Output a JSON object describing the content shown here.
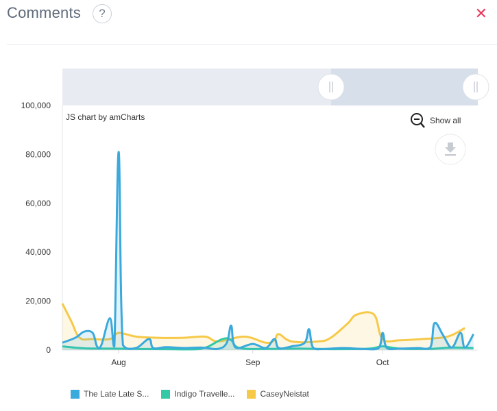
{
  "header": {
    "title": "Comments",
    "help_icon": "question-mark-icon",
    "close_icon": "close-icon"
  },
  "chart_toolbar": {
    "credit": "JS chart by amCharts",
    "show_all_label": "Show all",
    "zoom_out_icon": "zoom-out-icon",
    "export_icon": "download-icon"
  },
  "colors": {
    "accent_close": "#e8385a",
    "series": [
      "#3aa9dc",
      "#33c9a6",
      "#f7c948"
    ]
  },
  "chart_data": {
    "type": "area",
    "title": "",
    "xlabel": "",
    "ylabel": "",
    "ylim": [
      0,
      100000
    ],
    "y_ticks": [
      "0",
      "20,000",
      "40,000",
      "60,000",
      "80,000",
      "100,000"
    ],
    "x_tick_labels": [
      "Aug",
      "Sep",
      "Oct"
    ],
    "x_tick_dates": [
      "2019-08-01",
      "2019-09-01",
      "2019-10-01"
    ],
    "x_range": [
      "2019-07-19",
      "2019-10-23"
    ],
    "grid": false,
    "legend_placement": "bottom-left",
    "scrollbar": true,
    "series": [
      {
        "name": "The Late Late S...",
        "points": [
          [
            "2019-07-19",
            3000
          ],
          [
            "2019-07-22",
            5000
          ],
          [
            "2019-07-24",
            7500
          ],
          [
            "2019-07-26",
            7000
          ],
          [
            "2019-07-27",
            1500
          ],
          [
            "2019-07-28",
            2000
          ],
          [
            "2019-07-30",
            13000
          ],
          [
            "2019-07-31",
            1500
          ],
          [
            "2019-08-01",
            81000
          ],
          [
            "2019-08-02",
            2000
          ],
          [
            "2019-08-05",
            800
          ],
          [
            "2019-08-08",
            4500
          ],
          [
            "2019-08-09",
            800
          ],
          [
            "2019-08-12",
            1200
          ],
          [
            "2019-08-16",
            800
          ],
          [
            "2019-08-20",
            1000
          ],
          [
            "2019-08-24",
            500
          ],
          [
            "2019-08-26",
            3000
          ],
          [
            "2019-08-27",
            10000
          ],
          [
            "2019-08-28",
            1000
          ],
          [
            "2019-09-01",
            2500
          ],
          [
            "2019-09-04",
            800
          ],
          [
            "2019-09-06",
            4500
          ],
          [
            "2019-09-07",
            800
          ],
          [
            "2019-09-10",
            1500
          ],
          [
            "2019-09-13",
            3000
          ],
          [
            "2019-09-14",
            8500
          ],
          [
            "2019-09-15",
            800
          ],
          [
            "2019-09-18",
            500
          ],
          [
            "2019-09-22",
            800
          ],
          [
            "2019-09-26",
            500
          ],
          [
            "2019-09-30",
            700
          ],
          [
            "2019-10-01",
            7000
          ],
          [
            "2019-10-02",
            800
          ],
          [
            "2019-10-05",
            600
          ],
          [
            "2019-10-09",
            800
          ],
          [
            "2019-10-12",
            1000
          ],
          [
            "2019-10-13",
            11000
          ],
          [
            "2019-10-15",
            6000
          ],
          [
            "2019-10-17",
            1000
          ],
          [
            "2019-10-19",
            7000
          ],
          [
            "2019-10-20",
            1000
          ],
          [
            "2019-10-22",
            6500
          ]
        ]
      },
      {
        "name": "Indigo Travelle...",
        "points": [
          [
            "2019-07-19",
            1500
          ],
          [
            "2019-07-24",
            700
          ],
          [
            "2019-07-30",
            600
          ],
          [
            "2019-08-05",
            500
          ],
          [
            "2019-08-12",
            400
          ],
          [
            "2019-08-20",
            500
          ],
          [
            "2019-08-25",
            4500
          ],
          [
            "2019-08-27",
            4000
          ],
          [
            "2019-08-29",
            800
          ],
          [
            "2019-09-05",
            500
          ],
          [
            "2019-09-12",
            600
          ],
          [
            "2019-09-20",
            400
          ],
          [
            "2019-09-28",
            600
          ],
          [
            "2019-10-01",
            1500
          ],
          [
            "2019-10-05",
            600
          ],
          [
            "2019-10-12",
            500
          ],
          [
            "2019-10-17",
            1000
          ],
          [
            "2019-10-22",
            800
          ]
        ]
      },
      {
        "name": "CaseyNeistat",
        "points": [
          [
            "2019-07-19",
            19000
          ],
          [
            "2019-07-21",
            12000
          ],
          [
            "2019-07-23",
            5000
          ],
          [
            "2019-07-26",
            4500
          ],
          [
            "2019-07-30",
            4500
          ],
          [
            "2019-08-01",
            7000
          ],
          [
            "2019-08-05",
            5500
          ],
          [
            "2019-08-10",
            5000
          ],
          [
            "2019-08-16",
            5000
          ],
          [
            "2019-08-21",
            5500
          ],
          [
            "2019-08-24",
            3500
          ],
          [
            "2019-08-30",
            5500
          ],
          [
            "2019-09-04",
            3000
          ],
          [
            "2019-09-06",
            4000
          ],
          [
            "2019-09-07",
            6500
          ],
          [
            "2019-09-10",
            3500
          ],
          [
            "2019-09-16",
            3500
          ],
          [
            "2019-09-19",
            5000
          ],
          [
            "2019-09-23",
            11000
          ],
          [
            "2019-09-25",
            14500
          ],
          [
            "2019-09-29",
            14500
          ],
          [
            "2019-10-01",
            4500
          ],
          [
            "2019-10-05",
            4000
          ],
          [
            "2019-10-10",
            4500
          ],
          [
            "2019-10-16",
            5500
          ],
          [
            "2019-10-20",
            9000
          ]
        ]
      }
    ]
  }
}
